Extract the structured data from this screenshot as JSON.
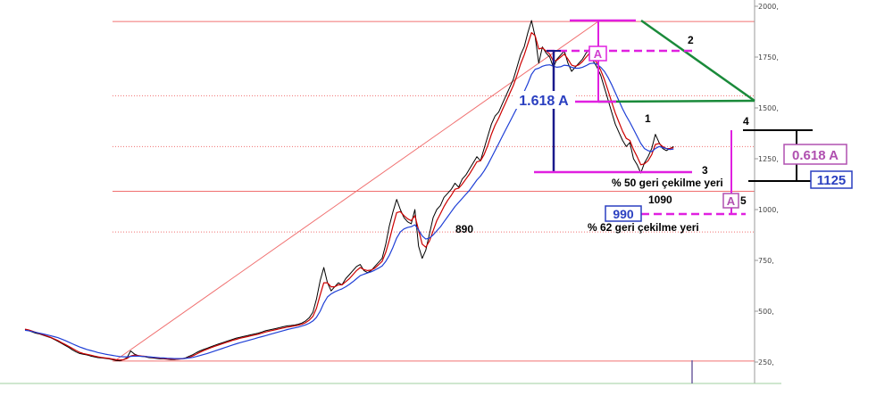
{
  "chart_data": {
    "type": "line",
    "title": "",
    "xlabel": "",
    "ylabel": "",
    "ylim": [
      200,
      2000
    ],
    "y_ticks": [
      "250,",
      "500,",
      "750,",
      "1000,",
      "1250,",
      "1500,",
      "1750,",
      "2000,"
    ],
    "y_tick_values": [
      250,
      500,
      750,
      1000,
      1250,
      1500,
      1750,
      2000
    ],
    "x_count": 200,
    "series": [
      {
        "values": [
          410,
          405,
          398,
          392,
          388,
          382,
          376,
          370,
          362,
          352,
          342,
          332,
          322,
          310,
          300,
          292,
          288,
          285,
          280,
          276,
          272,
          270,
          268,
          266,
          262,
          258,
          256,
          262,
          272,
          305,
          290,
          282,
          278,
          276,
          272,
          270,
          268,
          266,
          266,
          264,
          262,
          262,
          264,
          266,
          270,
          278,
          286,
          296,
          305,
          312,
          318,
          325,
          332,
          338,
          344,
          350,
          356,
          362,
          368,
          372,
          376,
          380,
          384,
          388,
          392,
          398,
          404,
          408,
          412,
          416,
          420,
          424,
          428,
          430,
          432,
          436,
          442,
          452,
          468,
          495,
          560,
          650,
          715,
          640,
          600,
          620,
          640,
          630,
          660,
          680,
          700,
          720,
          730,
          700,
          690,
          700,
          720,
          740,
          760,
          830,
          920,
          990,
          1050,
          1000,
          960,
          940,
          930,
          1000,
          820,
          760,
          800,
          880,
          960,
          1000,
          1020,
          1060,
          1080,
          1100,
          1130,
          1110,
          1150,
          1170,
          1200,
          1230,
          1260,
          1240,
          1300,
          1360,
          1420,
          1460,
          1480,
          1520,
          1560,
          1600,
          1640,
          1700,
          1760,
          1800,
          1870,
          1930,
          1850,
          1720,
          1800,
          1770,
          1750,
          1700,
          1740,
          1760,
          1780,
          1720,
          1680,
          1700,
          1720,
          1740,
          1770,
          1790,
          1730,
          1700,
          1660,
          1600,
          1540,
          1480,
          1420,
          1380,
          1340,
          1310,
          1330,
          1250,
          1220,
          1180,
          1230,
          1260,
          1300,
          1370,
          1330,
          1300,
          1290,
          1300,
          1310
        ],
        "color": "#000000"
      },
      {
        "name": "",
        "values": [
          412,
          408,
          402,
          396,
          390,
          384,
          378,
          372,
          364,
          356,
          346,
          337,
          327,
          317,
          307,
          298,
          292,
          288,
          284,
          280,
          276,
          273,
          270,
          268,
          265,
          262,
          260,
          262,
          268,
          280,
          284,
          282,
          280,
          278,
          275,
          273,
          271,
          269,
          268,
          266,
          265,
          264,
          265,
          266,
          268,
          273,
          280,
          289,
          298,
          306,
          313,
          320,
          327,
          333,
          339,
          345,
          351,
          357,
          362,
          367,
          371,
          375,
          379,
          383,
          387,
          392,
          398,
          402,
          406,
          410,
          414,
          418,
          422,
          425,
          428,
          431,
          436,
          444,
          456,
          475,
          515,
          580,
          640,
          640,
          620,
          620,
          630,
          630,
          645,
          660,
          680,
          700,
          715,
          705,
          700,
          702,
          712,
          728,
          745,
          790,
          850,
          920,
          985,
          990,
          970,
          955,
          945,
          970,
          900,
          830,
          815,
          845,
          895,
          945,
          980,
          1015,
          1045,
          1070,
          1100,
          1105,
          1125,
          1150,
          1175,
          1205,
          1235,
          1240,
          1270,
          1315,
          1370,
          1415,
          1450,
          1490,
          1530,
          1570,
          1610,
          1660,
          1715,
          1760,
          1815,
          1870,
          1855,
          1790,
          1795,
          1780,
          1765,
          1730,
          1735,
          1750,
          1765,
          1740,
          1710,
          1705,
          1712,
          1728,
          1750,
          1770,
          1745,
          1720,
          1685,
          1640,
          1585,
          1530,
          1475,
          1430,
          1385,
          1350,
          1340,
          1295,
          1260,
          1220,
          1225,
          1240,
          1270,
          1320,
          1325,
          1310,
          1300,
          1300,
          1305
        ],
        "color": "#cc0000"
      },
      {
        "name": "",
        "values": [
          406,
          404,
          400,
          396,
          392,
          388,
          384,
          380,
          375,
          370,
          363,
          356,
          348,
          340,
          332,
          324,
          318,
          312,
          307,
          302,
          297,
          293,
          289,
          286,
          283,
          280,
          277,
          276,
          276,
          278,
          279,
          279,
          278,
          277,
          276,
          274,
          273,
          271,
          270,
          269,
          268,
          267,
          267,
          267,
          268,
          270,
          273,
          277,
          282,
          287,
          292,
          298,
          304,
          310,
          316,
          322,
          328,
          334,
          340,
          345,
          350,
          355,
          360,
          365,
          370,
          375,
          380,
          385,
          390,
          395,
          400,
          405,
          410,
          414,
          418,
          422,
          427,
          433,
          441,
          452,
          470,
          500,
          540,
          570,
          585,
          595,
          603,
          610,
          620,
          632,
          645,
          660,
          675,
          682,
          688,
          694,
          702,
          712,
          723,
          745,
          775,
          815,
          860,
          890,
          905,
          912,
          916,
          925,
          900,
          870,
          855,
          860,
          875,
          895,
          915,
          940,
          965,
          990,
          1015,
          1035,
          1055,
          1075,
          1095,
          1120,
          1145,
          1165,
          1190,
          1220,
          1255,
          1290,
          1325,
          1360,
          1395,
          1430,
          1465,
          1500,
          1540,
          1580,
          1620,
          1665,
          1690,
          1695,
          1705,
          1710,
          1712,
          1705,
          1700,
          1702,
          1710,
          1708,
          1700,
          1695,
          1695,
          1700,
          1708,
          1718,
          1720,
          1715,
          1700,
          1680,
          1650,
          1615,
          1575,
          1535,
          1495,
          1460,
          1430,
          1395,
          1360,
          1325,
          1300,
          1290,
          1285,
          1300,
          1310,
          1305,
          1300,
          1295,
          1298
        ],
        "color": "#1f3fd6"
      }
    ],
    "horizontal_levels": [
      {
        "value": 1925,
        "style": "solid",
        "color": "#f07070"
      },
      {
        "value": 1560,
        "style": "dotted",
        "color": "#f07070"
      },
      {
        "value": 1310,
        "style": "dotted",
        "color": "#f07070"
      },
      {
        "value": 1090,
        "style": "solid",
        "color": "#f07070"
      },
      {
        "value": 890,
        "style": "dotted",
        "color": "#f07070"
      },
      {
        "value": 255,
        "style": "solid",
        "color": "#f07070"
      }
    ],
    "annotations": {
      "a_top": "A",
      "a_bottom": "A",
      "fib_1618": "1.618 A",
      "fib_0618": "0.618 A",
      "level_1125": "1125",
      "level_990": "990",
      "level_1090": "1090",
      "level_890": "890",
      "retrace_50": "% 50 geri çekilme yeri",
      "retrace_62": "% 62 geri çekilme yeri",
      "wave_1": "1",
      "wave_2": "2",
      "wave_3": "3",
      "wave_4": "4",
      "wave_5": "5"
    },
    "colors": {
      "magenta": "#e020e0",
      "navy": "#1a1a8c",
      "green": "#1a8a3a",
      "fib_blue": "#2a3fc0",
      "fib_purple": "#b050b0"
    }
  }
}
